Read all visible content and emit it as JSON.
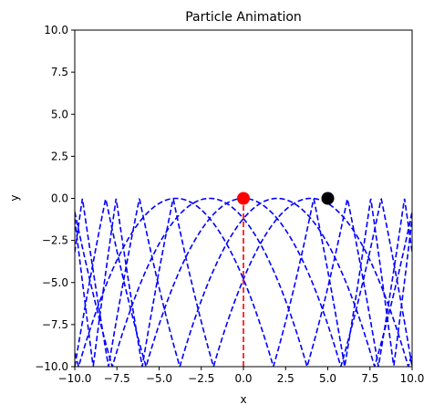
{
  "chart_data": {
    "type": "line",
    "title": "Particle Animation",
    "xlabel": "x",
    "ylabel": "y",
    "xlim": [
      -10,
      10
    ],
    "ylim": [
      -10,
      10
    ],
    "xticks": [
      -10,
      -7.5,
      -5,
      -2.5,
      0,
      2.5,
      5,
      7.5,
      10
    ],
    "xtick_labels": [
      "−10.0",
      "−7.5",
      "−5.0",
      "−2.5",
      "0.0",
      "2.5",
      "5.0",
      "7.5",
      "10.0"
    ],
    "yticks": [
      -10,
      -7.5,
      -5,
      -2.5,
      0,
      2.5,
      5,
      7.5,
      10
    ],
    "ytick_labels": [
      "−10.0",
      "−7.5",
      "−5.0",
      "−2.5",
      "0.0",
      "2.5",
      "5.0",
      "7.5",
      "10.0"
    ],
    "grid": false,
    "legend": null,
    "series": [
      {
        "style": "dashed",
        "color": "#0000ff",
        "vertex_x": -4.0,
        "vertex_y": 0,
        "curvature": 0.3
      },
      {
        "style": "dashed",
        "color": "#0000ff",
        "vertex_x": -2.0,
        "vertex_y": 0,
        "curvature": 0.3
      },
      {
        "style": "dashed",
        "color": "#0000ff",
        "vertex_x": 0.0,
        "vertex_y": 0,
        "curvature": 0.3
      },
      {
        "style": "dashed",
        "color": "#0000ff",
        "vertex_x": 2.0,
        "vertex_y": 0,
        "curvature": 0.3
      },
      {
        "style": "dashed",
        "color": "#0000ff",
        "vertex_x": 4.0,
        "vertex_y": 0,
        "curvature": 0.3
      }
    ],
    "vertical_line": {
      "x": 0,
      "y_from": -10,
      "y_to": 0,
      "style": "dashed",
      "color": "#ff0000"
    },
    "points": [
      {
        "x": 0,
        "y": 0,
        "color": "#ff0000"
      },
      {
        "x": 5,
        "y": 0,
        "color": "#000000"
      }
    ]
  }
}
